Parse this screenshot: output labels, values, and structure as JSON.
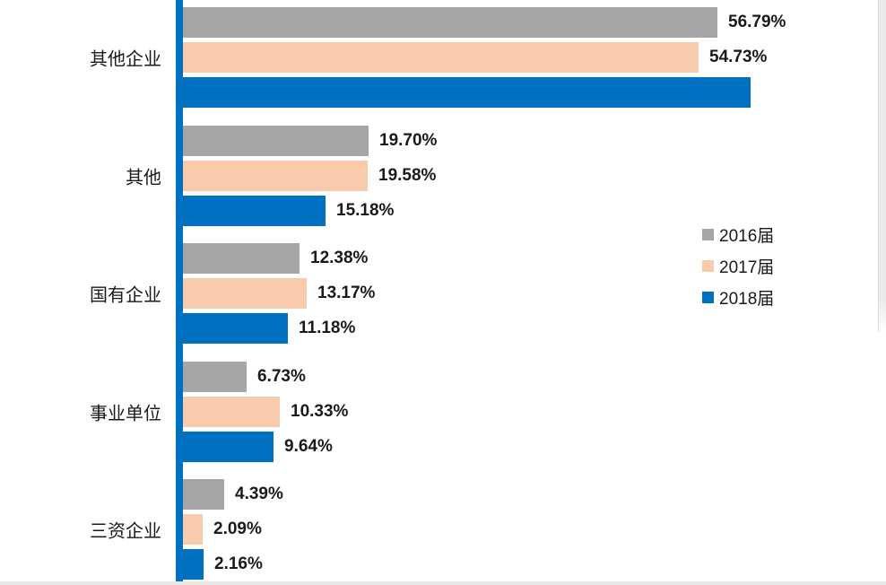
{
  "page": {
    "background": "#ffffff",
    "bottom_strip_color": "#e7e7e7",
    "scrollbar_color": "#e9e9e9"
  },
  "chart_data": {
    "type": "bar",
    "orientation": "horizontal",
    "title": "",
    "categories": [
      "其他企业",
      "其他",
      "国有企业",
      "事业单位",
      "三资企业"
    ],
    "series": [
      {
        "name": "2016届",
        "color": "#A6A6A6",
        "values": [
          56.79,
          19.7,
          12.38,
          6.73,
          4.39
        ],
        "labels": [
          "56.79%",
          "19.70%",
          "12.38%",
          "6.73%",
          "4.39%"
        ]
      },
      {
        "name": "2017届",
        "color": "#F8CBAD",
        "values": [
          54.73,
          19.58,
          13.17,
          10.33,
          2.09
        ],
        "labels": [
          "54.73%",
          "19.58%",
          "13.17%",
          "10.33%",
          "2.09%"
        ]
      },
      {
        "name": "2018届",
        "color": "#0070C0",
        "values": [
          60.3,
          15.18,
          11.18,
          9.64,
          2.16
        ],
        "labels": [
          "",
          "15.18%",
          "11.18%",
          "9.64%",
          "2.16%"
        ]
      }
    ],
    "xlim": [
      0,
      65
    ],
    "axis_color": "#0070C0",
    "grid": false,
    "legend_position": "right"
  }
}
